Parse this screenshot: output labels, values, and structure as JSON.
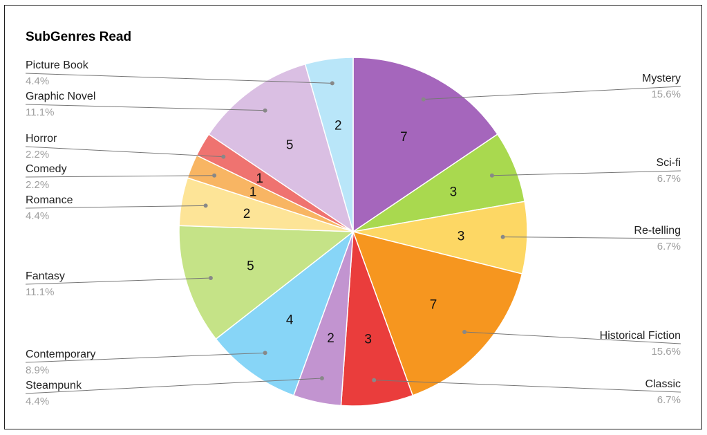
{
  "chart_data": {
    "type": "pie",
    "title": "SubGenres Read",
    "slices": [
      {
        "label": "Mystery",
        "value": 7,
        "percent": "15.6%",
        "color": "#a566bc"
      },
      {
        "label": "Sci-fi",
        "value": 3,
        "percent": "6.7%",
        "color": "#a9d94f"
      },
      {
        "label": "Re-telling",
        "value": 3,
        "percent": "6.7%",
        "color": "#fdd764"
      },
      {
        "label": "Historical Fiction",
        "value": 7,
        "percent": "15.6%",
        "color": "#f6961f"
      },
      {
        "label": "Classic",
        "value": 3,
        "percent": "6.7%",
        "color": "#ea3d3c"
      },
      {
        "label": "Steampunk",
        "value": 2,
        "percent": "4.4%",
        "color": "#c294d0"
      },
      {
        "label": "Contemporary",
        "value": 4,
        "percent": "8.9%",
        "color": "#87d5f7"
      },
      {
        "label": "Fantasy",
        "value": 5,
        "percent": "11.1%",
        "color": "#c5e387"
      },
      {
        "label": "Romance",
        "value": 2,
        "percent": "4.4%",
        "color": "#fde497"
      },
      {
        "label": "Comedy",
        "value": 1,
        "percent": "2.2%",
        "color": "#f8b563"
      },
      {
        "label": "Horror",
        "value": 1,
        "percent": "2.2%",
        "color": "#ef7370"
      },
      {
        "label": "Graphic Novel",
        "value": 5,
        "percent": "11.1%",
        "color": "#dabfe3"
      },
      {
        "label": "Picture Book",
        "value": 2,
        "percent": "4.4%",
        "color": "#b9e6f9"
      }
    ]
  }
}
